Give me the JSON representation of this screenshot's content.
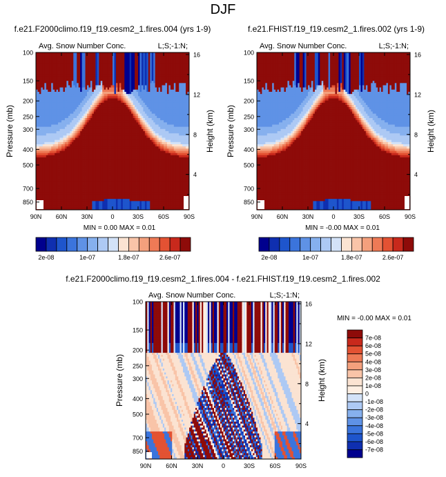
{
  "figure_title": "DJF",
  "colors": {
    "seq": [
      "#00008e",
      "#0f2fb0",
      "#1e55cc",
      "#3b74dc",
      "#5f92e6",
      "#86b0ee",
      "#adc9f4",
      "#d3e2f8",
      "#fbe3d2",
      "#f9c4a8",
      "#f4a07d",
      "#ee7a56",
      "#e35233",
      "#c8291c",
      "#8e0b09"
    ],
    "diff": [
      "#00008e",
      "#0f2fb0",
      "#1e55cc",
      "#3b74dc",
      "#5f92e6",
      "#86b0ee",
      "#adc9f4",
      "#d3e2f8",
      "#fdeee2",
      "#fbe3d2",
      "#f9c4a8",
      "#f4a07d",
      "#ee7a56",
      "#e35233",
      "#c8291c",
      "#8e0b09"
    ]
  },
  "chart_data": [
    {
      "type": "heatmap",
      "title": "f.e21.F2000climo.f19_f19.cesm2_1.fires.004 (yrs 1-9)",
      "left_string": "Avg. Snow Number Conc.",
      "right_string": "L;S;-1:N;",
      "stats": "MIN =  0.00  MAX =  0.01",
      "ylabel": "Pressure (mb)",
      "y2label": "Height (km)",
      "xticks": [
        "90N",
        "60N",
        "30N",
        "0",
        "30S",
        "60S",
        "90S"
      ],
      "yticks": [
        "100",
        "150",
        "200",
        "250",
        "300",
        "400",
        "500",
        "700",
        "850"
      ],
      "y2ticks": [
        "16",
        "12",
        "8",
        "4"
      ],
      "colorbar_labels": [
        "2e-08",
        "1e-07",
        "1.8e-07",
        "2.6e-07"
      ]
    },
    {
      "type": "heatmap",
      "title": "f.e21.FHIST.f19_f19.cesm2_1.fires.002 (yrs 1-9)",
      "left_string": "Avg. Snow Number Conc.",
      "right_string": "L;S;-1:N;",
      "stats": "MIN = -0.00  MAX =  0.01",
      "ylabel": "Pressure (mb)",
      "y2label": "Height (km)",
      "xticks": [
        "90N",
        "60N",
        "30N",
        "0",
        "30S",
        "60S",
        "90S"
      ],
      "yticks": [
        "100",
        "150",
        "200",
        "250",
        "300",
        "400",
        "500",
        "700",
        "850"
      ],
      "y2ticks": [
        "16",
        "12",
        "8",
        "4"
      ],
      "colorbar_labels": [
        "2e-08",
        "1e-07",
        "1.8e-07",
        "2.6e-07"
      ]
    },
    {
      "type": "heatmap",
      "title": "f.e21.F2000climo.f19_f19.cesm2_1.fires.004 - f.e21.FHIST.f19_f19.cesm2_1.fires.002",
      "left_string": "Avg. Snow Number Conc.",
      "right_string": "L;S;-1:N;",
      "stats": "MIN = -0.00  MAX =  0.01",
      "ylabel": "Pressure (mb)",
      "y2label": "Height (km)",
      "xticks": [
        "90N",
        "60N",
        "30N",
        "0",
        "30S",
        "60S",
        "90S"
      ],
      "yticks": [
        "100",
        "150",
        "200",
        "250",
        "300",
        "400",
        "500",
        "700",
        "850"
      ],
      "y2ticks": [
        "16",
        "12",
        "8",
        "4"
      ],
      "colorbar_labels": [
        "7e-08",
        "6e-08",
        "5e-08",
        "4e-08",
        "3e-08",
        "2e-08",
        "1e-08",
        "0",
        "-1e-08",
        "-2e-08",
        "-3e-08",
        "-4e-08",
        "-5e-08",
        "-6e-08",
        "-7e-08"
      ]
    }
  ]
}
